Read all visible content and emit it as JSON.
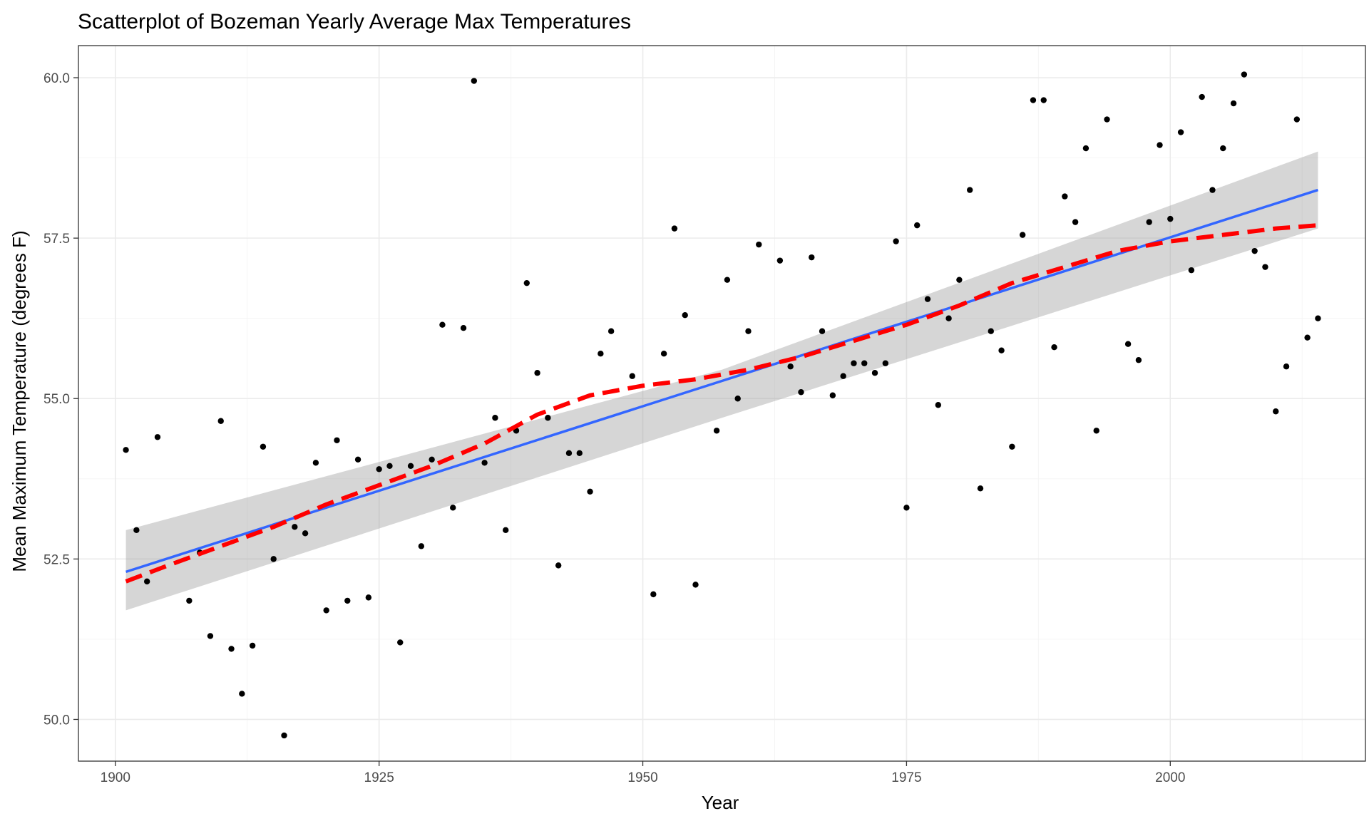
{
  "chart_data": {
    "type": "scatter",
    "title": "Scatterplot of Bozeman Yearly Average Max Temperatures",
    "xlabel": "Year",
    "ylabel": "Mean Maximum Temperature (degrees F)",
    "xlim": [
      1896.5,
      2018.5
    ],
    "ylim": [
      49.35,
      60.5
    ],
    "x_ticks": [
      1900,
      1925,
      1950,
      1975,
      2000
    ],
    "x_tick_labels": [
      "1900",
      "1925",
      "1950",
      "1975",
      "2000"
    ],
    "y_ticks": [
      50.0,
      52.5,
      55.0,
      57.5,
      60.0
    ],
    "y_tick_labels": [
      "50.0",
      "52.5",
      "55.0",
      "57.5",
      "60.0"
    ],
    "grid": true,
    "legend": "none",
    "points": {
      "color": "#000000",
      "x": [
        1901,
        1902,
        1903,
        1904,
        1907,
        1908,
        1909,
        1910,
        1911,
        1912,
        1913,
        1914,
        1915,
        1916,
        1917,
        1918,
        1919,
        1920,
        1921,
        1922,
        1923,
        1924,
        1925,
        1926,
        1927,
        1928,
        1929,
        1930,
        1931,
        1932,
        1933,
        1934,
        1935,
        1936,
        1937,
        1938,
        1939,
        1940,
        1941,
        1942,
        1943,
        1944,
        1945,
        1946,
        1947,
        1949,
        1951,
        1952,
        1953,
        1954,
        1955,
        1957,
        1958,
        1959,
        1960,
        1961,
        1963,
        1964,
        1965,
        1966,
        1967,
        1968,
        1969,
        1970,
        1971,
        1972,
        1973,
        1974,
        1975,
        1976,
        1977,
        1978,
        1979,
        1980,
        1981,
        1982,
        1983,
        1984,
        1985,
        1986,
        1987,
        1988,
        1989,
        1990,
        1991,
        1992,
        1993,
        1994,
        1996,
        1997,
        1998,
        1999,
        2000,
        2001,
        2002,
        2003,
        2004,
        2005,
        2006,
        2007,
        2008,
        2009,
        2010,
        2011,
        2012,
        2013,
        2014
      ],
      "y": [
        54.2,
        52.95,
        52.15,
        54.4,
        51.85,
        52.6,
        51.3,
        54.65,
        51.1,
        50.4,
        51.15,
        54.25,
        52.5,
        49.75,
        53.0,
        52.9,
        54.0,
        51.7,
        54.35,
        51.85,
        54.05,
        51.9,
        53.9,
        53.95,
        51.2,
        53.95,
        52.7,
        54.05,
        56.15,
        53.3,
        56.1,
        59.95,
        54.0,
        54.7,
        52.95,
        54.5,
        56.8,
        55.4,
        54.7,
        52.4,
        54.15,
        54.15,
        53.55,
        55.7,
        56.05,
        55.35,
        51.95,
        55.7,
        57.65,
        56.3,
        52.1,
        54.5,
        56.85,
        55.0,
        56.05,
        57.4,
        57.15,
        55.5,
        55.1,
        57.2,
        56.05,
        55.05,
        55.35,
        55.55,
        55.55,
        55.4,
        55.55,
        57.45,
        53.3,
        57.7,
        56.55,
        54.9,
        56.25,
        56.85,
        58.25,
        53.6,
        56.05,
        55.75,
        54.25,
        57.55,
        59.65,
        59.65,
        55.8,
        58.15,
        57.75,
        58.9,
        54.5,
        59.35,
        55.85,
        55.6,
        57.75,
        58.95,
        57.8,
        59.15,
        57.0,
        59.7,
        58.25,
        58.9,
        59.6,
        60.05,
        57.3,
        57.05,
        54.8,
        55.5,
        59.35,
        55.95,
        56.25
      ]
    },
    "series": [
      {
        "type": "linear-fit",
        "color": "#3366ff",
        "style": "solid",
        "x": [
          1901,
          2014
        ],
        "y": [
          52.3,
          58.25
        ],
        "ribbon": {
          "color": "#999999",
          "x": [
            1901,
            1957.5,
            2014
          ],
          "lower": [
            51.7,
            54.7,
            57.65
          ],
          "upper": [
            52.95,
            55.45,
            58.85
          ]
        }
      },
      {
        "type": "smooth",
        "color": "#ff0000",
        "style": "dashed",
        "x": [
          1901,
          1905,
          1910,
          1915,
          1920,
          1925,
          1930,
          1935,
          1940,
          1945,
          1950,
          1955,
          1960,
          1965,
          1970,
          1975,
          1980,
          1985,
          1990,
          1995,
          2000,
          2005,
          2010,
          2014
        ],
        "y": [
          52.15,
          52.4,
          52.7,
          53.0,
          53.35,
          53.65,
          53.95,
          54.3,
          54.75,
          55.05,
          55.2,
          55.3,
          55.45,
          55.65,
          55.9,
          56.15,
          56.45,
          56.8,
          57.05,
          57.3,
          57.45,
          57.55,
          57.65,
          57.7
        ]
      }
    ]
  }
}
